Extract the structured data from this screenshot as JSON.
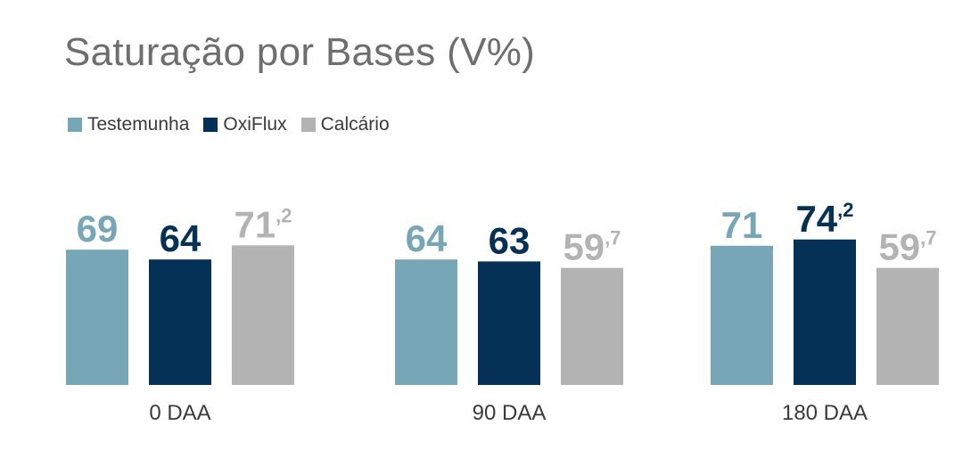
{
  "colors": {
    "title": "#6e6e6e",
    "legend_text": "#3a3a3a",
    "category_text": "#3a3a3a"
  },
  "chart_data": {
    "type": "bar",
    "title": "Saturação por Bases (V%)",
    "xlabel": "",
    "ylabel": "",
    "ylim": [
      0,
      80
    ],
    "grid": false,
    "legend_position": "top-left",
    "categories": [
      "0 DAA",
      "90 DAA",
      "180 DAA"
    ],
    "series": [
      {
        "name": "Testemunha",
        "color": "#77a7b6",
        "values": [
          69,
          64,
          71
        ],
        "labels": [
          {
            "int": "69",
            "dec": ""
          },
          {
            "int": "64",
            "dec": ""
          },
          {
            "int": "71",
            "dec": ""
          }
        ]
      },
      {
        "name": "OxiFlux",
        "color": "#043155",
        "values": [
          64,
          63,
          74.2
        ],
        "labels": [
          {
            "int": "64",
            "dec": ""
          },
          {
            "int": "63",
            "dec": ""
          },
          {
            "int": "74",
            "dec": ",2"
          }
        ]
      },
      {
        "name": "Calcário",
        "color": "#b3b3b3",
        "values": [
          71.2,
          59.7,
          59.7
        ],
        "labels": [
          {
            "int": "71",
            "dec": ",2"
          },
          {
            "int": "59",
            "dec": ",7"
          },
          {
            "int": "59",
            "dec": ",7"
          }
        ]
      }
    ]
  }
}
